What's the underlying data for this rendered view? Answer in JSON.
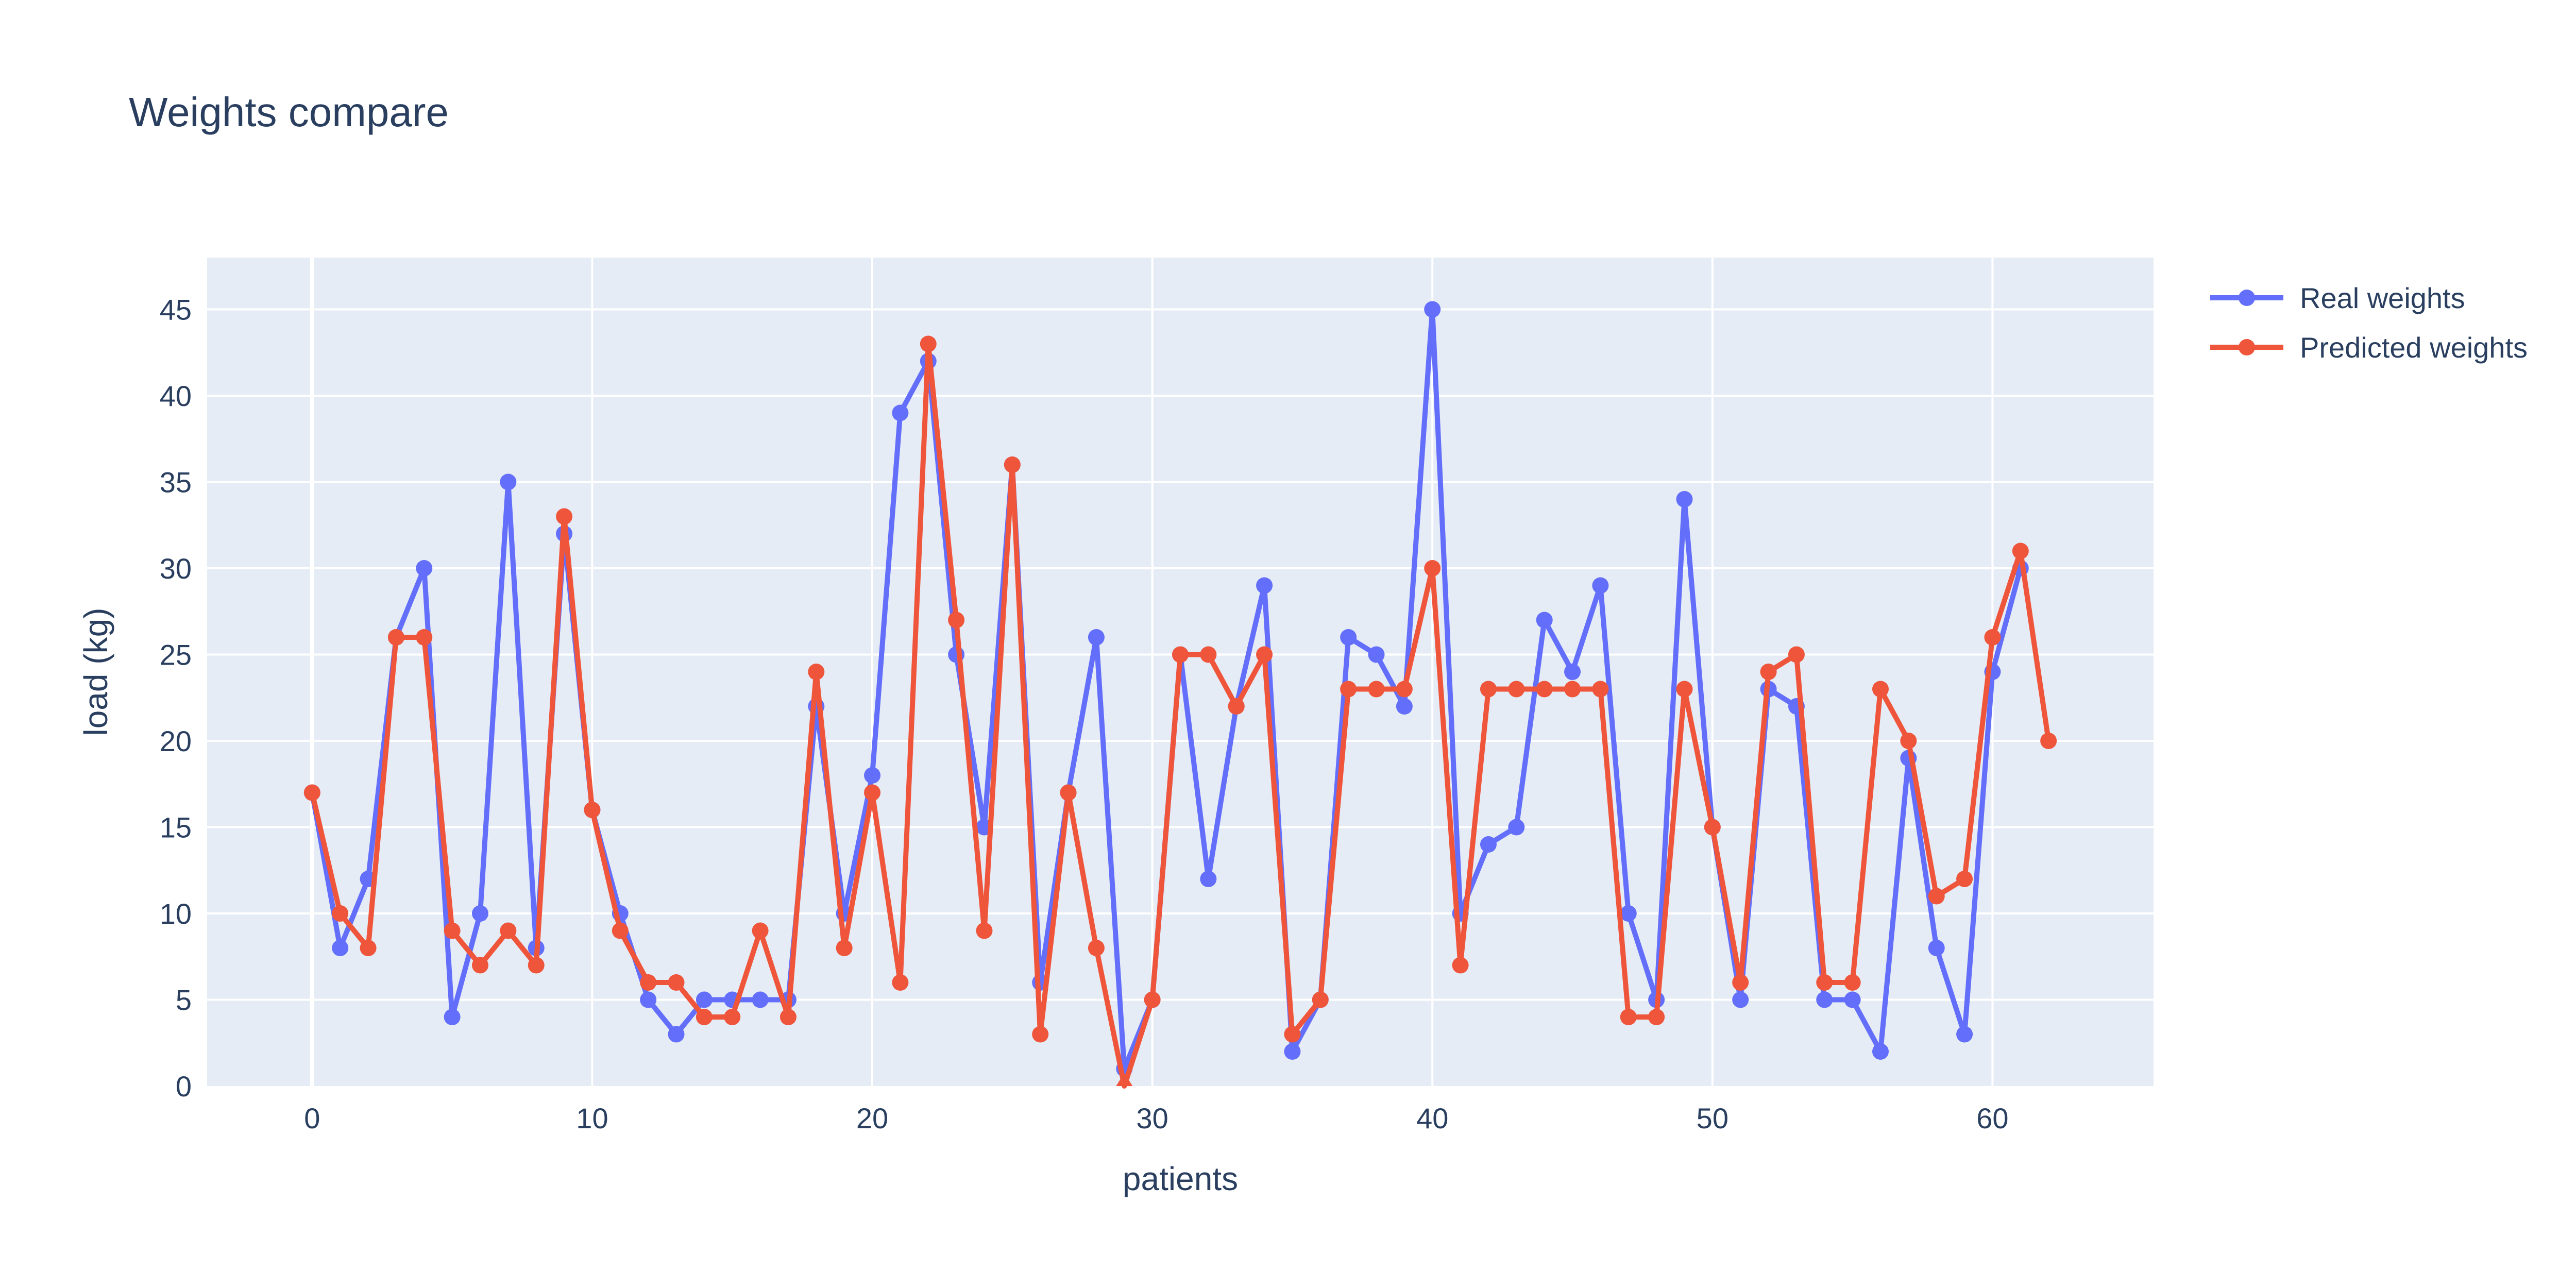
{
  "chart_data": {
    "type": "line",
    "title": "Weights compare",
    "xlabel": "patients",
    "ylabel": "load (kg)",
    "xlim": [
      -3.75,
      65.75
    ],
    "ylim": [
      0,
      48
    ],
    "x_ticks": [
      0,
      10,
      20,
      30,
      40,
      50,
      60
    ],
    "y_ticks": [
      0,
      5,
      10,
      15,
      20,
      25,
      30,
      35,
      40,
      45
    ],
    "grid": true,
    "legend_position": "top-right",
    "series": [
      {
        "name": "Real weights",
        "color": "#636efa",
        "x": [
          0,
          1,
          2,
          3,
          4,
          5,
          6,
          7,
          8,
          9,
          10,
          11,
          12,
          13,
          14,
          15,
          16,
          17,
          18,
          19,
          20,
          21,
          22,
          23,
          24,
          25,
          26,
          27,
          28,
          29,
          30,
          31,
          32,
          33,
          34,
          35,
          36,
          37,
          38,
          39,
          40,
          41,
          42,
          43,
          44,
          45,
          46,
          47,
          48,
          49,
          50,
          51,
          52,
          53,
          54,
          55,
          56,
          57,
          58,
          59,
          60,
          61
        ],
        "values": [
          17,
          8,
          12,
          26,
          30,
          4,
          10,
          35,
          8,
          32,
          16,
          10,
          5,
          3,
          5,
          5,
          5,
          5,
          22,
          10,
          18,
          39,
          42,
          25,
          15,
          36,
          6,
          17,
          26,
          1,
          5,
          25,
          12,
          22,
          29,
          2,
          5,
          26,
          25,
          22,
          45,
          10,
          14,
          15,
          27,
          24,
          29,
          10,
          5,
          34,
          15,
          5,
          23,
          22,
          5,
          5,
          2,
          19,
          8,
          3,
          24,
          30
        ]
      },
      {
        "name": "Predicted weights",
        "color": "#ef553b",
        "x": [
          0,
          1,
          2,
          3,
          4,
          5,
          6,
          7,
          8,
          9,
          10,
          11,
          12,
          13,
          14,
          15,
          16,
          17,
          18,
          19,
          20,
          21,
          22,
          23,
          24,
          25,
          26,
          27,
          28,
          29,
          30,
          31,
          32,
          33,
          34,
          35,
          36,
          37,
          38,
          39,
          40,
          41,
          42,
          43,
          44,
          45,
          46,
          47,
          48,
          49,
          50,
          51,
          52,
          53,
          54,
          55,
          56,
          57,
          58,
          59,
          60,
          61,
          62
        ],
        "values": [
          17,
          10,
          8,
          26,
          26,
          9,
          7,
          9,
          7,
          33,
          16,
          9,
          6,
          6,
          4,
          4,
          9,
          4,
          24,
          8,
          17,
          6,
          43,
          27,
          9,
          36,
          3,
          17,
          8,
          0,
          5,
          25,
          25,
          22,
          25,
          3,
          5,
          23,
          23,
          23,
          30,
          7,
          23,
          23,
          23,
          23,
          23,
          4,
          4,
          23,
          15,
          6,
          24,
          25,
          6,
          6,
          23,
          20,
          11,
          12,
          26,
          31,
          20
        ]
      }
    ]
  }
}
